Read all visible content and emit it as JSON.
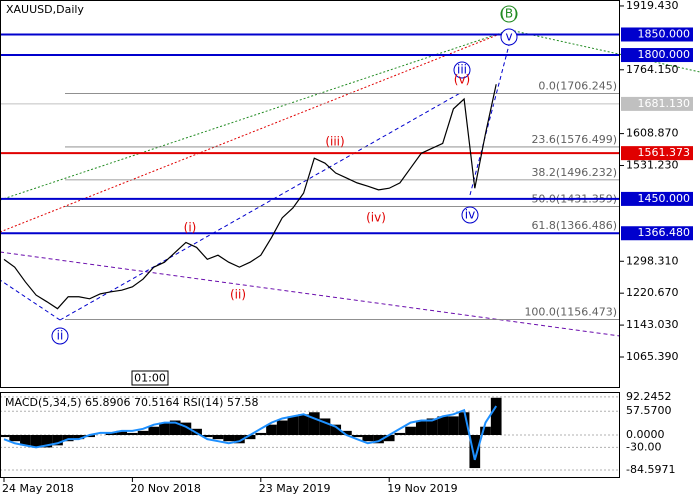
{
  "chart_data": [
    {
      "type": "line",
      "title": "XAUUSD,Daily",
      "time_label": "01:00",
      "categories": [
        "24 May 2018",
        null,
        null,
        null,
        null,
        null,
        null,
        null,
        null,
        null,
        null,
        null,
        "20 Nov 2018",
        null,
        null,
        null,
        null,
        null,
        null,
        null,
        null,
        null,
        null,
        null,
        "23 May 2019",
        null,
        null,
        null,
        null,
        null,
        null,
        null,
        null,
        null,
        null,
        null,
        "19 Nov 2019",
        null,
        null,
        null,
        null,
        null,
        null,
        null,
        null,
        null,
        null
      ],
      "values": [
        1303,
        1284,
        1248,
        1216,
        1200,
        1183,
        1212,
        1212,
        1207,
        1219,
        1224,
        1228,
        1236,
        1255,
        1284,
        1296,
        1320,
        1344,
        1332,
        1303,
        1313,
        1296,
        1284,
        1296,
        1313,
        1356,
        1404,
        1428,
        1464,
        1549,
        1537,
        1513,
        1501,
        1489,
        1481,
        1472,
        1476,
        1489,
        1525,
        1561,
        1573,
        1585,
        1669,
        1693,
        1476,
        1609,
        1729
      ],
      "color": "#000000",
      "ylim": [
        990,
        1933.9
      ],
      "yticks": [
        {
          "value": 1919.43,
          "label": "1919.430"
        },
        {
          "value": 1764.15,
          "label": "1764.150"
        },
        {
          "value": 1608.87,
          "label": "1608.870"
        },
        {
          "value": 1531.23,
          "label": "1531.230"
        },
        {
          "value": 1298.31,
          "label": "1298.310"
        },
        {
          "value": 1220.67,
          "label": "1220.670"
        },
        {
          "value": 1143.03,
          "label": "1143.030"
        },
        {
          "value": 1065.39,
          "label": "1065.390"
        }
      ],
      "levels": [
        {
          "value": 1850,
          "label": "1850.000",
          "color": "#0000cd"
        },
        {
          "value": 1800,
          "label": "1800.000",
          "color": "#0000cd"
        },
        {
          "value": 1681.13,
          "label": "1681.130",
          "color": "#c0c0c0"
        },
        {
          "value": 1561.373,
          "label": "1561.373",
          "color": "#e00000"
        },
        {
          "value": 1450,
          "label": "1450.000",
          "color": "#0000cd"
        },
        {
          "value": 1366.48,
          "label": "1366.480",
          "color": "#0000cd"
        }
      ],
      "fibonacci": [
        {
          "value": 1706.245,
          "label": "0.0(1706.245)"
        },
        {
          "value": 1576.499,
          "label": "23.6(1576.499)"
        },
        {
          "value": 1496.232,
          "label": "38.2(1496.232)"
        },
        {
          "value": 1431.359,
          "label": "50.0(1431.359)"
        },
        {
          "value": 1366.486,
          "label": "61.8(1366.486)"
        },
        {
          "value": 1156.473,
          "label": "100.0(1156.473)"
        }
      ],
      "wave_labels": [
        {
          "text": "(B)",
          "color": "#228b22",
          "circled": true
        },
        {
          "text": "v",
          "color": "#0000cd",
          "circled": true
        },
        {
          "text": "iii",
          "color": "#0000cd",
          "circled": true
        },
        {
          "text": "(v)",
          "color": "#e00000",
          "circled": false
        },
        {
          "text": "(iii)",
          "color": "#e00000",
          "circled": false
        },
        {
          "text": "(iv)",
          "color": "#e00000",
          "circled": false
        },
        {
          "text": "iv",
          "color": "#0000cd",
          "circled": true
        },
        {
          "text": "(i)",
          "color": "#e00000",
          "circled": false
        },
        {
          "text": "(ii)",
          "color": "#e00000",
          "circled": false
        },
        {
          "text": "ii",
          "color": "#0000cd",
          "circled": true
        }
      ]
    },
    {
      "type": "bar",
      "title": "MACD(5,34,5) 65.8906 70.5164 RSI(14) 57.58",
      "values": [
        -5,
        -15,
        -25,
        -30,
        -30,
        -25,
        -15,
        -10,
        -5,
        0,
        5,
        10,
        5,
        10,
        20,
        30,
        35,
        30,
        15,
        -5,
        -10,
        -15,
        -20,
        -10,
        5,
        25,
        35,
        45,
        50,
        55,
        40,
        25,
        10,
        -5,
        -15,
        -20,
        -15,
        5,
        20,
        35,
        40,
        45,
        45,
        55,
        -80,
        20,
        90
      ],
      "color": "#000000",
      "line": {
        "values": [
          -10,
          -20,
          -25,
          -30,
          -25,
          -20,
          -10,
          -10,
          0,
          5,
          5,
          10,
          10,
          15,
          25,
          30,
          30,
          20,
          5,
          -10,
          -15,
          -20,
          -15,
          0,
          15,
          30,
          40,
          45,
          50,
          40,
          30,
          20,
          0,
          -10,
          -20,
          -15,
          0,
          15,
          30,
          35,
          35,
          45,
          50,
          60,
          -60,
          30,
          70
        ],
        "color": "#1e90ff"
      },
      "ylim": [
        -104,
        104
      ],
      "yticks": [
        92.2452,
        {
          "value": 57.57,
          "label": "57.5700"
        },
        {
          "value": 0,
          "label": "0.0000"
        },
        {
          "value": -30,
          "label": "-30.00"
        },
        -84.5971
      ]
    }
  ]
}
